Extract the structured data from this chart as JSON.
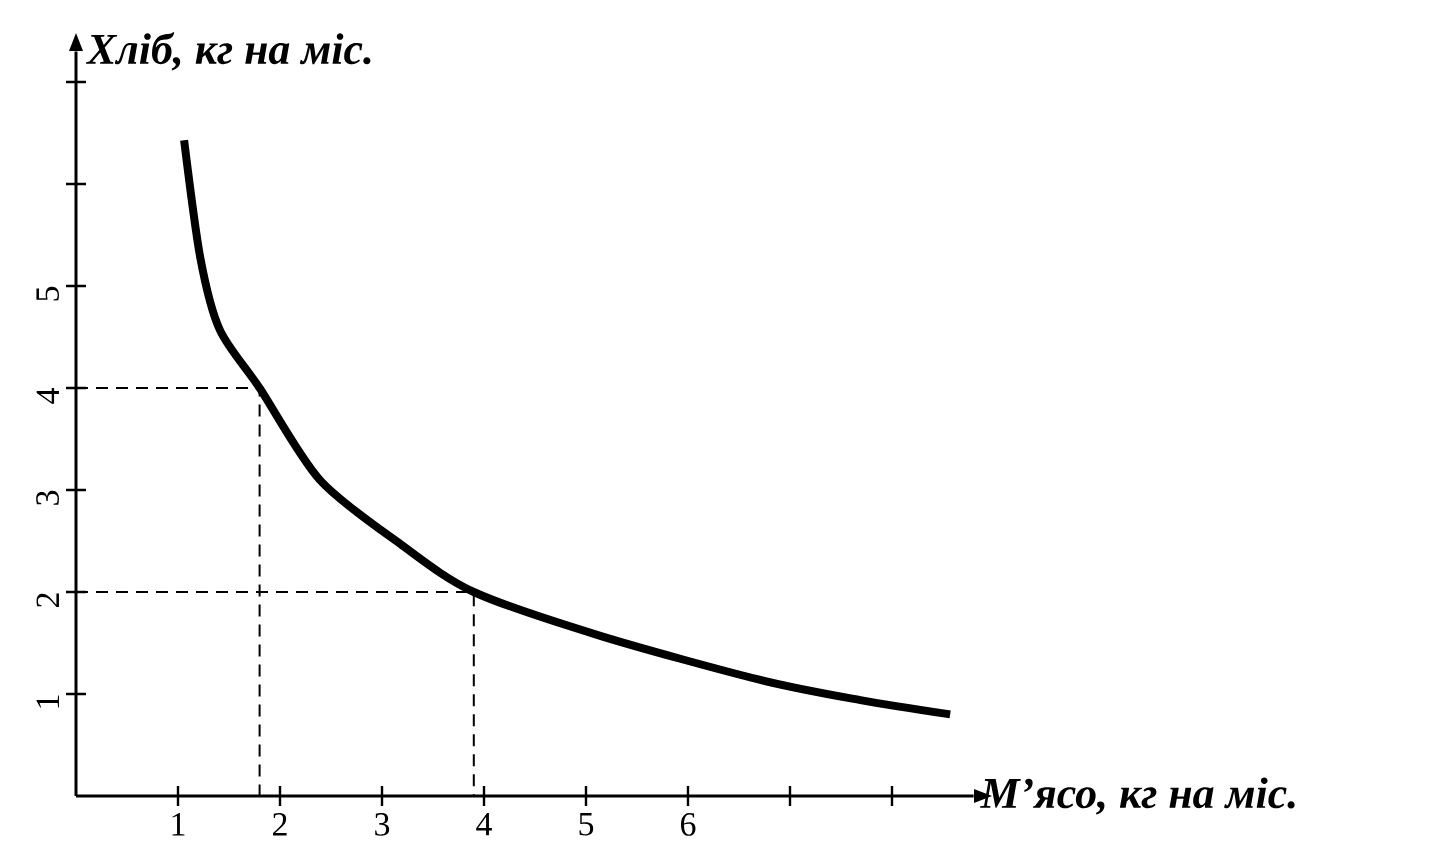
{
  "chart_data": {
    "type": "line",
    "xlabel": "М’ясо, кг на  міс.",
    "ylabel": "Хліб, кг на міс.",
    "xlim": [
      0,
      8.8
    ],
    "ylim": [
      0,
      7.3
    ],
    "xticks": [
      1,
      2,
      3,
      4,
      5,
      6,
      {
        "value": 7,
        "label": null
      },
      {
        "value": 8,
        "label": null
      }
    ],
    "yticks": [
      1,
      2,
      3,
      4,
      5,
      {
        "value": 6,
        "label": null
      },
      {
        "value": 7,
        "label": null
      }
    ],
    "series": [
      {
        "color": "#000000",
        "line_style": "solid",
        "x": [
          1.06,
          1.22,
          1.41,
          1.8,
          2.39,
          3.18,
          3.9,
          5.14,
          6.7,
          7.69,
          8.57
        ],
        "values": [
          6.43,
          5.27,
          4.57,
          4.0,
          3.1,
          2.47,
          2.0,
          1.57,
          1.14,
          0.94,
          0.8
        ]
      },
      {
        "color": "#000000",
        "line_style": "dashed",
        "x": [
          0,
          1.8,
          1.8
        ],
        "values": [
          4.0,
          4.0,
          0
        ]
      },
      {
        "color": "#000000",
        "line_style": "dashed",
        "x": [
          0,
          3.9,
          3.9
        ],
        "values": [
          2.0,
          2.0,
          0
        ]
      }
    ]
  }
}
